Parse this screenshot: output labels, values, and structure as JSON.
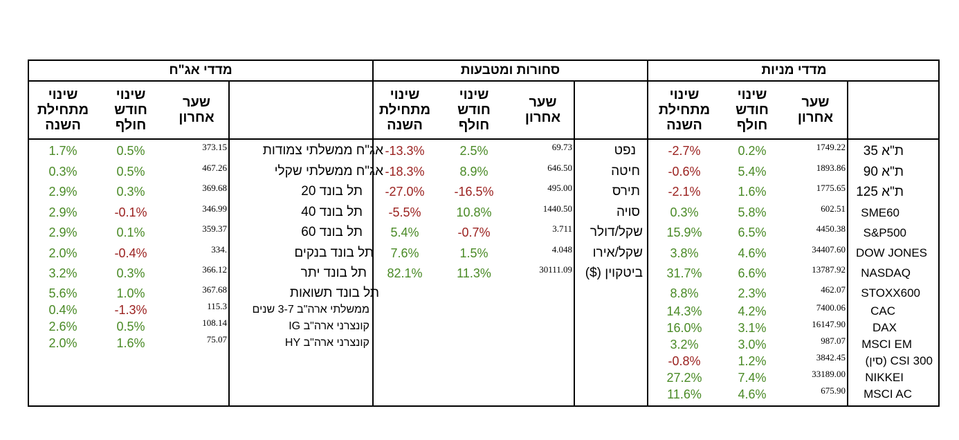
{
  "colors": {
    "positive": "#4a8a26",
    "negative": "#9b2220",
    "border": "#000000"
  },
  "headers": {
    "last_price": "שער\nאחרון",
    "month_change": "שינוי\nחודש\nחולף",
    "ytd_change": "שינוי\nמתחילת\nהשנה"
  },
  "sections": [
    {
      "id": "bonds",
      "title": "מדדי אג\"ח",
      "rows": [
        {
          "name": "אג\"ח ממשלתי צמודות",
          "last": "373.15",
          "month": "0.5%",
          "ytd": "1.7%"
        },
        {
          "name": "אג\"ח ממשלתי שקלי",
          "last": "467.26",
          "month": "0.5%",
          "ytd": "0.3%"
        },
        {
          "name": "תל בונד 20",
          "last": "369.68",
          "month": "0.3%",
          "ytd": "2.9%"
        },
        {
          "name": "תל בונד 40",
          "last": "346.99",
          "month": "-0.1%",
          "ytd": "2.9%"
        },
        {
          "name": "תל בונד 60",
          "last": "359.37",
          "month": "0.1%",
          "ytd": "2.9%"
        },
        {
          "name": "תל בונד בנקים",
          "last": "334.",
          "month": "-0.4%",
          "ytd": "2.0%"
        },
        {
          "name": "תל בונד יתר",
          "last": "366.12",
          "month": "0.3%",
          "ytd": "3.2%"
        },
        {
          "name": "תל בונד תשואות",
          "last": "367.68",
          "month": "1.0%",
          "ytd": "5.6%"
        },
        {
          "name": "ממשלתי ארה\"ב 3-7 שנים",
          "last": "115.3",
          "month": "-1.3%",
          "ytd": "0.4%"
        },
        {
          "name": "קונצרני ארה\"ב IG",
          "last": "108.14",
          "month": "0.5%",
          "ytd": "2.6%"
        },
        {
          "name": "קונצרני ארה\"ב HY",
          "last": "75.07",
          "month": "1.6%",
          "ytd": "2.0%"
        }
      ]
    },
    {
      "id": "commodities",
      "title": "סחורות ומטבעות",
      "rows": [
        {
          "name": "נפט",
          "last": "69.73",
          "month": "2.5%",
          "ytd": "-13.3%"
        },
        {
          "name": "חיטה",
          "last": "646.50",
          "month": "8.9%",
          "ytd": "-18.3%"
        },
        {
          "name": "תירס",
          "last": "495.00",
          "month": "-16.5%",
          "ytd": "-27.0%"
        },
        {
          "name": "סויה",
          "last": "1440.50",
          "month": "10.8%",
          "ytd": "-5.5%"
        },
        {
          "name": "שקל/דולר",
          "last": "3.711",
          "month": "-0.7%",
          "ytd": "5.4%"
        },
        {
          "name": "שקל/אירו",
          "last": "4.048",
          "month": "1.5%",
          "ytd": "7.6%"
        },
        {
          "name": "ביטקוין ($)",
          "last": "30111.09",
          "month": "11.3%",
          "ytd": "82.1%"
        }
      ]
    },
    {
      "id": "equities",
      "title": "מדדי מניות",
      "rows": [
        {
          "name": "ת\"א 35",
          "last": "1749.22",
          "month": "0.2%",
          "ytd": "-2.7%"
        },
        {
          "name": "ת\"א 90",
          "last": "1893.86",
          "month": "5.4%",
          "ytd": "-0.6%"
        },
        {
          "name": "ת\"א 125",
          "last": "1775.65",
          "month": "1.6%",
          "ytd": "-2.1%"
        },
        {
          "name": "SME60",
          "last": "602.51",
          "month": "5.8%",
          "ytd": "0.3%"
        },
        {
          "name": "S&P500",
          "last": "4450.38",
          "month": "6.5%",
          "ytd": "15.9%"
        },
        {
          "name": "DOW JONES",
          "last": "34407.60",
          "month": "4.6%",
          "ytd": "3.8%"
        },
        {
          "name": "NASDAQ",
          "last": "13787.92",
          "month": "6.6%",
          "ytd": "31.7%"
        },
        {
          "name": "STOXX600",
          "last": "462.07",
          "month": "2.3%",
          "ytd": "8.8%"
        },
        {
          "name": "CAC",
          "last": "7400.06",
          "month": "4.2%",
          "ytd": "14.3%"
        },
        {
          "name": "DAX",
          "last": "16147.90",
          "month": "3.1%",
          "ytd": "16.0%"
        },
        {
          "name": "MSCI EM",
          "last": "987.07",
          "month": "3.0%",
          "ytd": "3.2%"
        },
        {
          "name": "CSI 300 (סין)",
          "last": "3842.45",
          "month": "1.2%",
          "ytd": "-0.8%"
        },
        {
          "name": "NIKKEI",
          "last": "33189.00",
          "month": "7.4%",
          "ytd": "27.2%"
        },
        {
          "name": "MSCI AC",
          "last": "675.90",
          "month": "4.6%",
          "ytd": "11.6%"
        }
      ]
    }
  ]
}
